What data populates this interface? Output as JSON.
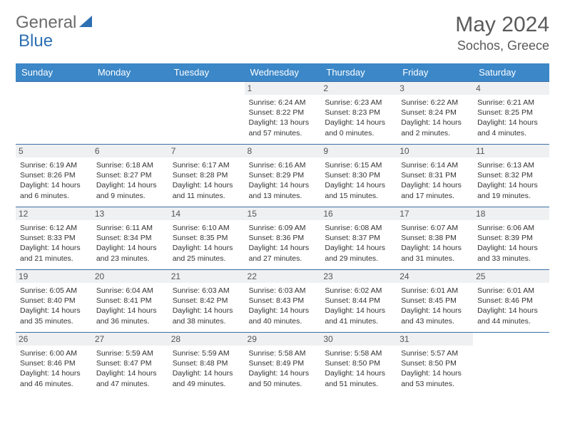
{
  "logo": {
    "text1": "General",
    "text2": "Blue"
  },
  "title": "May 2024",
  "location": "Sochos, Greece",
  "colors": {
    "header_bg": "#3b87c8",
    "header_text": "#ffffff",
    "daynum_bg": "#eef0f2",
    "border": "#3b6fa6",
    "logo_gray": "#6b6b6b",
    "logo_blue": "#2d6fb3"
  },
  "weekdays": [
    "Sunday",
    "Monday",
    "Tuesday",
    "Wednesday",
    "Thursday",
    "Friday",
    "Saturday"
  ],
  "lead_empty": 3,
  "trail_empty": 1,
  "days": [
    {
      "n": "1",
      "sr": "6:24 AM",
      "ss": "8:22 PM",
      "dl": "13 hours and 57 minutes."
    },
    {
      "n": "2",
      "sr": "6:23 AM",
      "ss": "8:23 PM",
      "dl": "14 hours and 0 minutes."
    },
    {
      "n": "3",
      "sr": "6:22 AM",
      "ss": "8:24 PM",
      "dl": "14 hours and 2 minutes."
    },
    {
      "n": "4",
      "sr": "6:21 AM",
      "ss": "8:25 PM",
      "dl": "14 hours and 4 minutes."
    },
    {
      "n": "5",
      "sr": "6:19 AM",
      "ss": "8:26 PM",
      "dl": "14 hours and 6 minutes."
    },
    {
      "n": "6",
      "sr": "6:18 AM",
      "ss": "8:27 PM",
      "dl": "14 hours and 9 minutes."
    },
    {
      "n": "7",
      "sr": "6:17 AM",
      "ss": "8:28 PM",
      "dl": "14 hours and 11 minutes."
    },
    {
      "n": "8",
      "sr": "6:16 AM",
      "ss": "8:29 PM",
      "dl": "14 hours and 13 minutes."
    },
    {
      "n": "9",
      "sr": "6:15 AM",
      "ss": "8:30 PM",
      "dl": "14 hours and 15 minutes."
    },
    {
      "n": "10",
      "sr": "6:14 AM",
      "ss": "8:31 PM",
      "dl": "14 hours and 17 minutes."
    },
    {
      "n": "11",
      "sr": "6:13 AM",
      "ss": "8:32 PM",
      "dl": "14 hours and 19 minutes."
    },
    {
      "n": "12",
      "sr": "6:12 AM",
      "ss": "8:33 PM",
      "dl": "14 hours and 21 minutes."
    },
    {
      "n": "13",
      "sr": "6:11 AM",
      "ss": "8:34 PM",
      "dl": "14 hours and 23 minutes."
    },
    {
      "n": "14",
      "sr": "6:10 AM",
      "ss": "8:35 PM",
      "dl": "14 hours and 25 minutes."
    },
    {
      "n": "15",
      "sr": "6:09 AM",
      "ss": "8:36 PM",
      "dl": "14 hours and 27 minutes."
    },
    {
      "n": "16",
      "sr": "6:08 AM",
      "ss": "8:37 PM",
      "dl": "14 hours and 29 minutes."
    },
    {
      "n": "17",
      "sr": "6:07 AM",
      "ss": "8:38 PM",
      "dl": "14 hours and 31 minutes."
    },
    {
      "n": "18",
      "sr": "6:06 AM",
      "ss": "8:39 PM",
      "dl": "14 hours and 33 minutes."
    },
    {
      "n": "19",
      "sr": "6:05 AM",
      "ss": "8:40 PM",
      "dl": "14 hours and 35 minutes."
    },
    {
      "n": "20",
      "sr": "6:04 AM",
      "ss": "8:41 PM",
      "dl": "14 hours and 36 minutes."
    },
    {
      "n": "21",
      "sr": "6:03 AM",
      "ss": "8:42 PM",
      "dl": "14 hours and 38 minutes."
    },
    {
      "n": "22",
      "sr": "6:03 AM",
      "ss": "8:43 PM",
      "dl": "14 hours and 40 minutes."
    },
    {
      "n": "23",
      "sr": "6:02 AM",
      "ss": "8:44 PM",
      "dl": "14 hours and 41 minutes."
    },
    {
      "n": "24",
      "sr": "6:01 AM",
      "ss": "8:45 PM",
      "dl": "14 hours and 43 minutes."
    },
    {
      "n": "25",
      "sr": "6:01 AM",
      "ss": "8:46 PM",
      "dl": "14 hours and 44 minutes."
    },
    {
      "n": "26",
      "sr": "6:00 AM",
      "ss": "8:46 PM",
      "dl": "14 hours and 46 minutes."
    },
    {
      "n": "27",
      "sr": "5:59 AM",
      "ss": "8:47 PM",
      "dl": "14 hours and 47 minutes."
    },
    {
      "n": "28",
      "sr": "5:59 AM",
      "ss": "8:48 PM",
      "dl": "14 hours and 49 minutes."
    },
    {
      "n": "29",
      "sr": "5:58 AM",
      "ss": "8:49 PM",
      "dl": "14 hours and 50 minutes."
    },
    {
      "n": "30",
      "sr": "5:58 AM",
      "ss": "8:50 PM",
      "dl": "14 hours and 51 minutes."
    },
    {
      "n": "31",
      "sr": "5:57 AM",
      "ss": "8:50 PM",
      "dl": "14 hours and 53 minutes."
    }
  ],
  "labels": {
    "sunrise": "Sunrise:",
    "sunset": "Sunset:",
    "daylight": "Daylight:"
  }
}
